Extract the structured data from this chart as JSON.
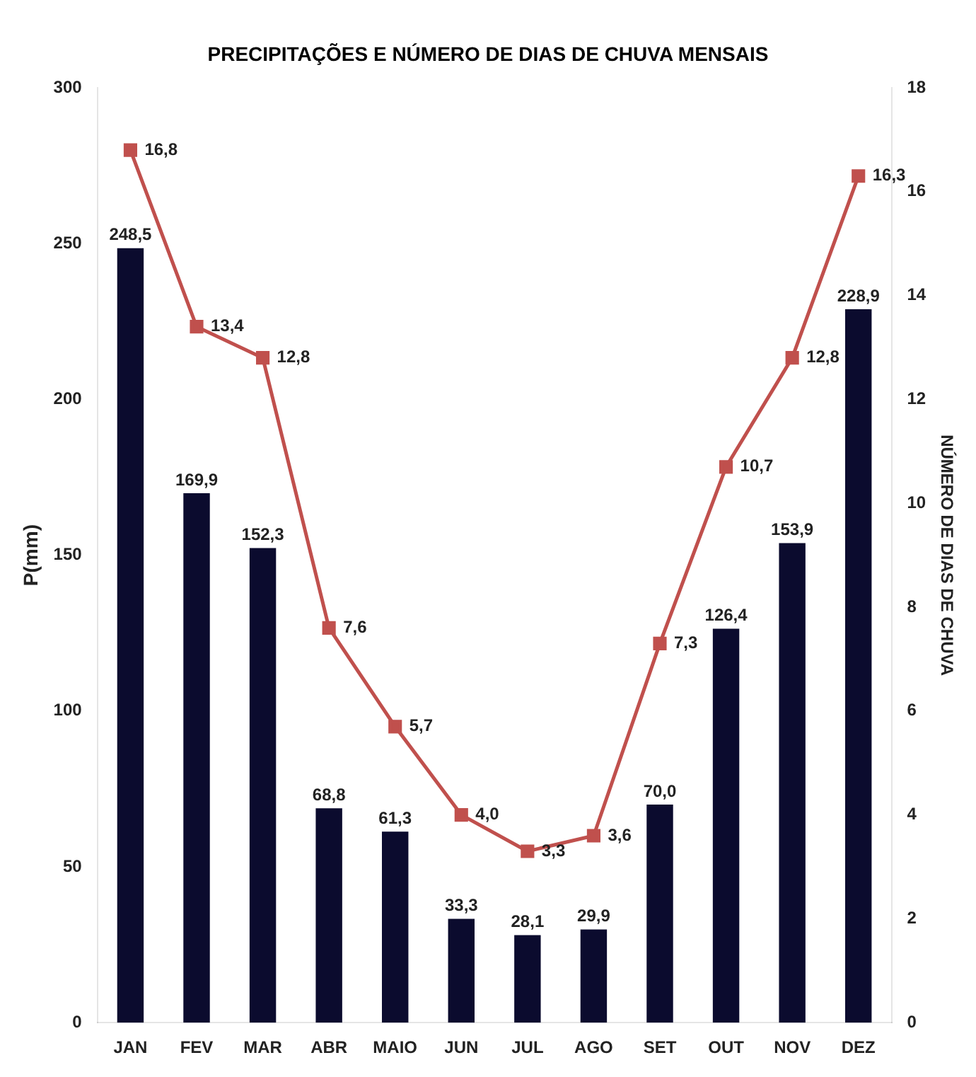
{
  "chart_data": {
    "type": "bar",
    "title": "PRECIPITAÇÕES E NÚMERO DE DIAS DE CHUVA MENSAIS",
    "ylabel": "P(mm)",
    "y2label": "NÚMERO DE DIAS DE CHUVA",
    "categories": [
      "JAN",
      "FEV",
      "MAR",
      "ABR",
      "MAIO",
      "JUN",
      "JUL",
      "AGO",
      "SET",
      "OUT",
      "NOV",
      "DEZ"
    ],
    "series": [
      {
        "color": "#0b0b2e",
        "values": [
          248.5,
          169.9,
          152.3,
          68.8,
          61.3,
          33.3,
          28.1,
          29.9,
          70.0,
          126.4,
          153.9,
          228.9
        ],
        "value_labels": [
          "248,5",
          "169,9",
          "152,3",
          "68,8",
          "61,3",
          "33,3",
          "28,1",
          "29,9",
          "70,0",
          "126,4",
          "153,9",
          "228,9"
        ]
      },
      {
        "type": "line",
        "axis": "y2",
        "color": "#c0504d",
        "marker": "square",
        "values": [
          16.8,
          13.4,
          12.8,
          7.6,
          5.7,
          4.0,
          3.3,
          3.6,
          7.3,
          10.7,
          12.8,
          16.3
        ],
        "value_labels": [
          "16,8",
          "13,4",
          "12,8",
          "7,6",
          "5,7",
          "4,0",
          "3,3",
          "3,6",
          "7,3",
          "10,7",
          "12,8",
          "16,3"
        ]
      }
    ],
    "ylim": [
      0,
      300
    ],
    "yticks": [
      0,
      50,
      100,
      150,
      200,
      250,
      300
    ],
    "y2lim": [
      0,
      18
    ],
    "y2ticks": [
      0,
      2,
      4,
      6,
      8,
      10,
      12,
      14,
      16,
      18
    ],
    "grid": false,
    "legend": false
  }
}
